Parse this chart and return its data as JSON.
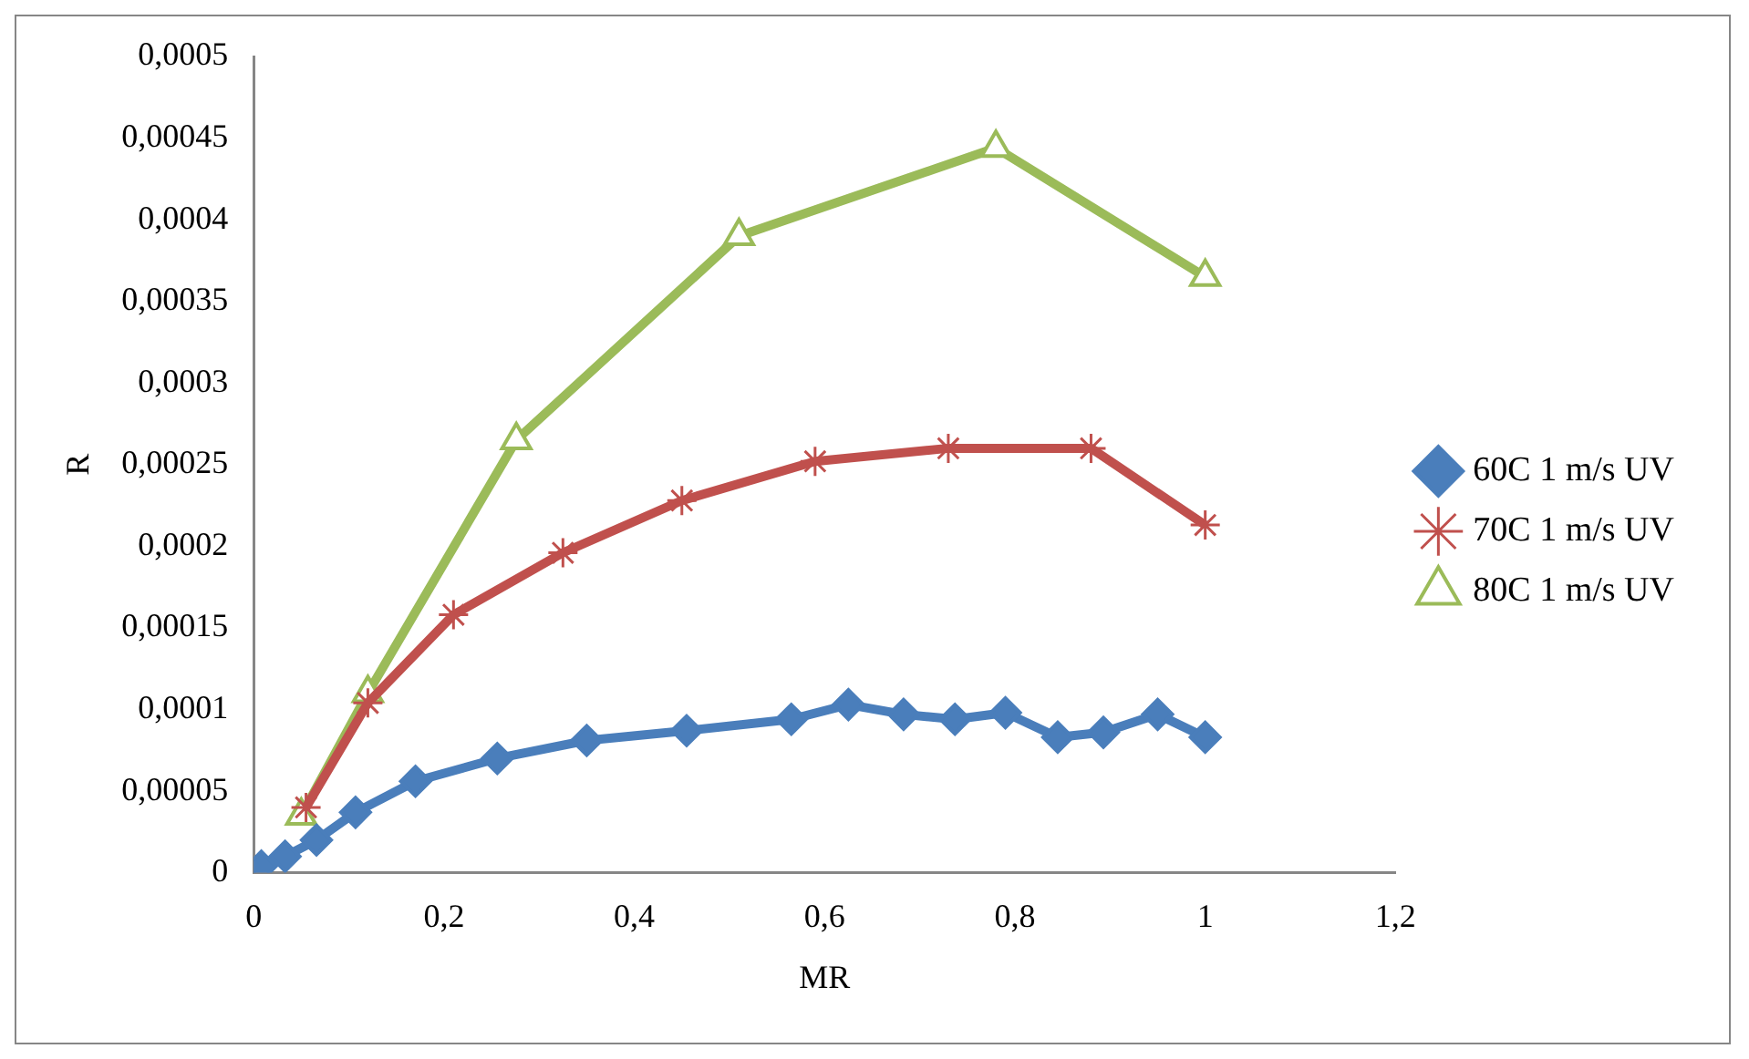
{
  "chart_data": {
    "type": "line",
    "xlabel": "MR",
    "ylabel": "R",
    "xlim": [
      0,
      1.2
    ],
    "xticks": [
      0,
      {
        "value": 0.2,
        "label": "0,2"
      },
      {
        "value": 0.4,
        "label": "0,4"
      },
      {
        "value": 0.6,
        "label": "0,6"
      },
      {
        "value": 0.8,
        "label": "0,8"
      },
      1,
      {
        "value": 1.2,
        "label": "1,2"
      }
    ],
    "ylim": [
      0,
      0.0005
    ],
    "yticks": [
      0,
      {
        "value": 5e-05,
        "label": "0,00005"
      },
      {
        "value": 0.0001,
        "label": "0,0001"
      },
      {
        "value": 0.00015,
        "label": "0,00015"
      },
      {
        "value": 0.0002,
        "label": "0,0002"
      },
      {
        "value": 0.00025,
        "label": "0,00025"
      },
      {
        "value": 0.0003,
        "label": "0,0003"
      },
      {
        "value": 0.00035,
        "label": "0,00035"
      },
      {
        "value": 0.0004,
        "label": "0,0004"
      },
      {
        "value": 0.00045,
        "label": "0,00045"
      },
      {
        "value": 0.0005,
        "label": "0,0005"
      }
    ],
    "grid": false,
    "legend": "right",
    "line_style": "solid",
    "series": [
      {
        "name": "60C 1 m/s UV",
        "color": "#4a7ebb",
        "marker": "diamond",
        "x": [
          0.008,
          0.033,
          0.066,
          0.107,
          0.17,
          0.256,
          0.35,
          0.455,
          0.565,
          0.625,
          0.683,
          0.737,
          0.79,
          0.845,
          0.893,
          0.95,
          1
        ],
        "values": [
          4e-06,
          1e-05,
          2e-05,
          3.7e-05,
          5.6e-05,
          7e-05,
          8.1e-05,
          8.7e-05,
          9.4e-05,
          0.000103,
          9.7e-05,
          9.4e-05,
          9.8e-05,
          8.3e-05,
          8.6e-05,
          9.7e-05,
          8.3e-05
        ]
      },
      {
        "name": "70C 1 m/s UV",
        "color": "#c0504d",
        "marker": "cross",
        "x": [
          0.055,
          0.12,
          0.21,
          0.325,
          0.45,
          0.59,
          0.73,
          0.88,
          1
        ],
        "values": [
          4e-05,
          0.000104,
          0.000158,
          0.000196,
          0.000228,
          0.000252,
          0.00026,
          0.00026,
          0.000213
        ]
      },
      {
        "name": "80C 1 m/s UV",
        "color": "#9bbb59",
        "marker": "triangle",
        "x": [
          0.05,
          0.12,
          0.276,
          0.51,
          0.78,
          1
        ],
        "values": [
          3.5e-05,
          0.00011,
          0.000265,
          0.00039,
          0.000444,
          0.000365
        ]
      }
    ]
  }
}
